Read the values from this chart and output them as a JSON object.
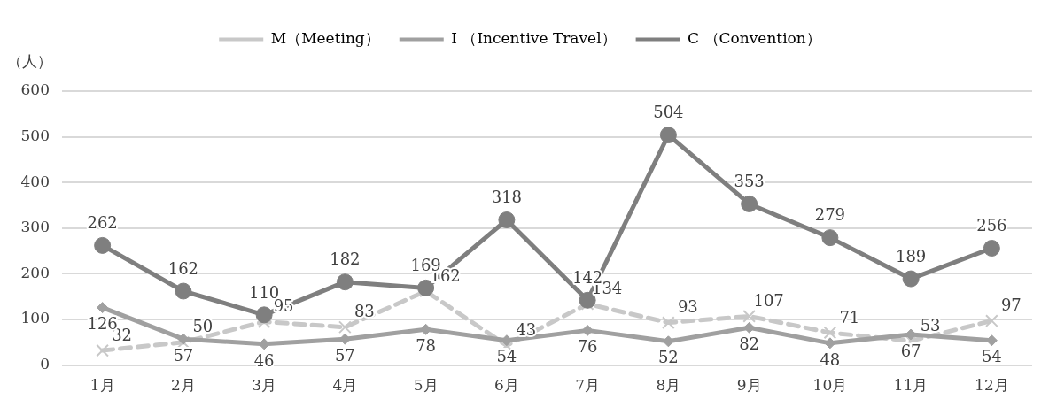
{
  "chart_data": {
    "type": "line",
    "ylabel": "（人）",
    "categories": [
      "1月",
      "2月",
      "3月",
      "4月",
      "5月",
      "6月",
      "7月",
      "8月",
      "9月",
      "10月",
      "11月",
      "12月"
    ],
    "series": [
      {
        "name": "M（Meeting）",
        "color": "#c8c8c8",
        "marker": "cross",
        "line_style": "dashed",
        "values": [
          32,
          50,
          95,
          83,
          162,
          43,
          134,
          93,
          107,
          71,
          53,
          97
        ]
      },
      {
        "name": "I （Incentive Travel）",
        "color": "#a0a0a0",
        "marker": "diamond",
        "line_style": "solid",
        "values": [
          126,
          57,
          46,
          57,
          78,
          54,
          76,
          52,
          82,
          48,
          67,
          54
        ]
      },
      {
        "name": "C （Convention）",
        "color": "#7f7f7f",
        "marker": "circle",
        "line_style": "solid",
        "values": [
          262,
          162,
          110,
          182,
          169,
          318,
          142,
          504,
          353,
          279,
          189,
          256
        ]
      }
    ],
    "ylim": [
      0,
      600
    ],
    "yticks": [
      0,
      100,
      200,
      300,
      400,
      500,
      600
    ],
    "grid": "y",
    "legend": "top",
    "data_labels": true
  }
}
